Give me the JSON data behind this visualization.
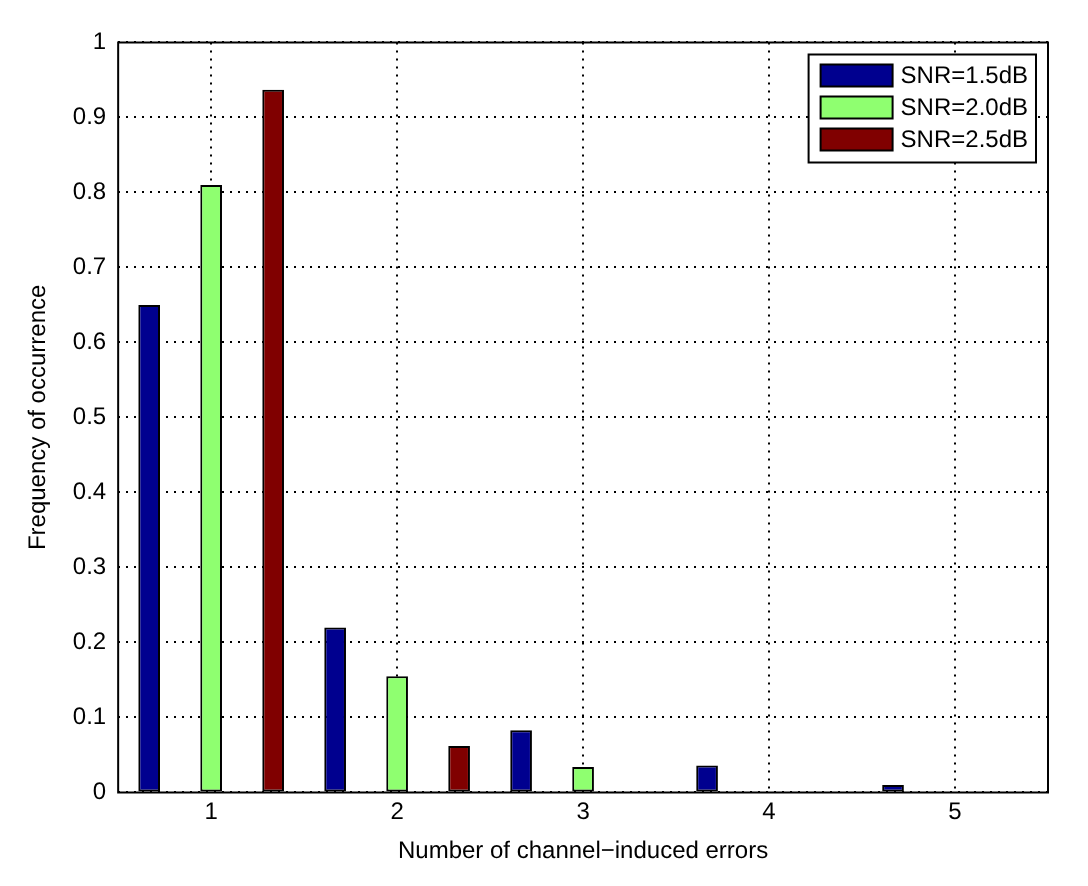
{
  "chart_data": {
    "type": "bar",
    "xlabel": "Number of channel−induced errors",
    "ylabel": "Frequency of occurrence",
    "categories": [
      "1",
      "2",
      "3",
      "4",
      "5"
    ],
    "series": [
      {
        "name": "SNR=1.5dB",
        "color": "#00008f",
        "values": [
          0.65,
          0.22,
          0.083,
          0.036,
          0.01
        ]
      },
      {
        "name": "SNR=2.0dB",
        "color": "#8fff70",
        "values": [
          0.81,
          0.155,
          0.034,
          0,
          0
        ]
      },
      {
        "name": "SNR=2.5dB",
        "color": "#800000",
        "values": [
          0.937,
          0.062,
          0,
          0,
          0
        ]
      }
    ],
    "ylim": [
      0,
      1
    ],
    "yticks": [
      0,
      0.1,
      0.2,
      0.3,
      0.4,
      0.5,
      0.6,
      0.7,
      0.8,
      0.9,
      1
    ],
    "grid": true,
    "legend": "top right",
    "line_style": "dotted"
  }
}
